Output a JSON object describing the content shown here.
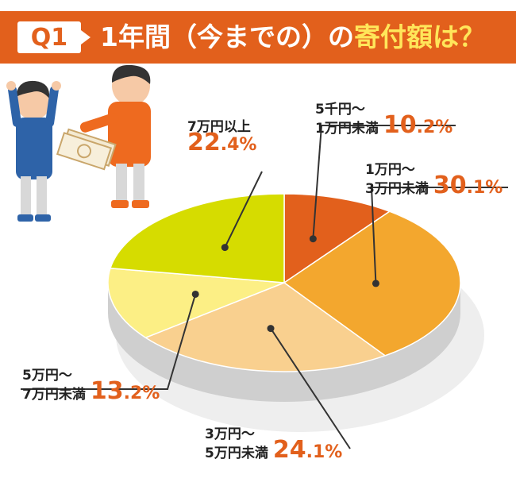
{
  "header": {
    "badge": "Q1",
    "title_prefix": "1年間（今までの）の",
    "title_highlight": "寄付額は？"
  },
  "colors": {
    "header": "#e2601c",
    "highlight": "#ffe65a",
    "percent_text": "#e2601c",
    "slices": [
      "#e2601c",
      "#f3a72e",
      "#f9d08f",
      "#fcef85",
      "#d6dc00"
    ]
  },
  "chart_data": {
    "type": "pie",
    "title": "1年間（今までの）の寄付額は？",
    "unit": "%",
    "slices": [
      {
        "label_line1": "5千円～",
        "label_line2": "1万円未満",
        "value": 10.2,
        "int": "10",
        "dec": ".2%"
      },
      {
        "label_line1": "1万円～",
        "label_line2": "3万円未満",
        "value": 30.1,
        "int": "30",
        "dec": ".1%"
      },
      {
        "label_line1": "3万円～",
        "label_line2": "5万円未満",
        "value": 24.1,
        "int": "24",
        "dec": ".1%"
      },
      {
        "label_line1": "5万円～",
        "label_line2": "7万円未満",
        "value": 13.2,
        "int": "13",
        "dec": ".2%"
      },
      {
        "label_line1": "7万円以上",
        "label_line2": "",
        "value": 22.4,
        "int": "22",
        "dec": ".4%"
      }
    ]
  }
}
